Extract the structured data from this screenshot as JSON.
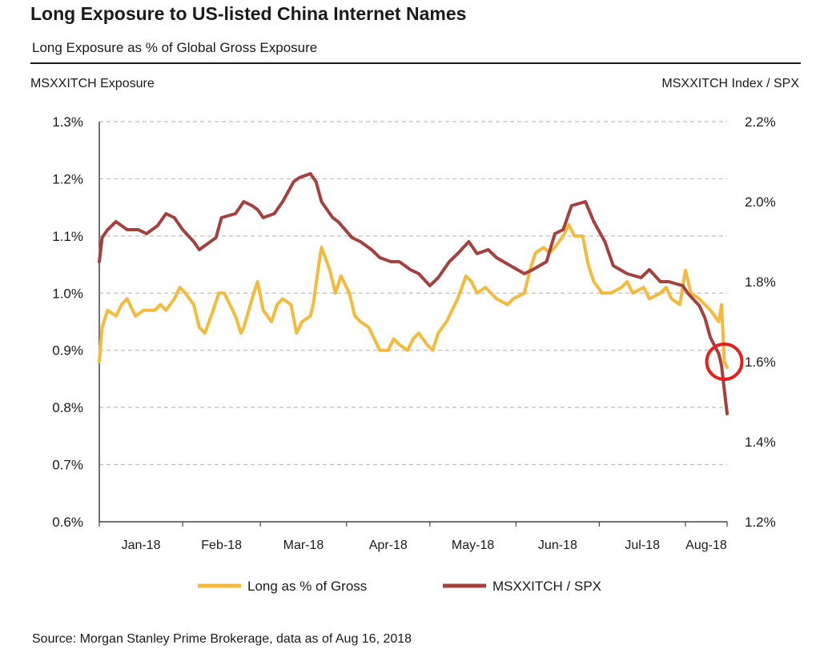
{
  "header": {
    "title": "Long Exposure to US-listed China Internet Names",
    "subtitle": "Long Exposure as % of Global Gross Exposure"
  },
  "footer": {
    "source": "Source: Morgan Stanley Prime Brokerage, data as of Aug 16, 2018"
  },
  "colors": {
    "long_series": "#F5B93B",
    "index_series": "#A6403C",
    "highlight_circle": "#E3201B",
    "gridline": "#BDBDBD",
    "axis": "#444444"
  },
  "chart_data": {
    "type": "line",
    "title": "Long Exposure to US-listed China Internet Names",
    "subtitle": "Long Exposure as % of Global Gross Exposure",
    "ylabel": "MSXXITCH Exposure",
    "y2label": "MSXXITCH Index / SPX",
    "x_tick_labels": [
      "Jan-18",
      "Feb-18",
      "Mar-18",
      "Apr-18",
      "May-18",
      "Jun-18",
      "Jul-18",
      "Aug-18"
    ],
    "x_range": [
      "2018-01-02",
      "2018-08-16"
    ],
    "ylim": [
      0.6,
      1.3
    ],
    "y_ticks": [
      "0.6%",
      "0.7%",
      "0.8%",
      "0.9%",
      "1.0%",
      "1.1%",
      "1.2%",
      "1.3%"
    ],
    "y2lim": [
      1.2,
      2.2
    ],
    "y2_ticks": [
      "1.2%",
      "1.4%",
      "1.6%",
      "1.8%",
      "2.0%",
      "2.2%"
    ],
    "grid": true,
    "legend_position": "bottom",
    "annotation": {
      "type": "circle",
      "at_date": "2018-08-15",
      "axis": "left",
      "value": 0.88
    },
    "series": [
      {
        "name": "Long as % of Gross",
        "axis": "left",
        "color": "#F5B93B",
        "points": [
          [
            "2018-01-02",
            0.88
          ],
          [
            "2018-01-03",
            0.94
          ],
          [
            "2018-01-05",
            0.97
          ],
          [
            "2018-01-08",
            0.96
          ],
          [
            "2018-01-10",
            0.98
          ],
          [
            "2018-01-12",
            0.99
          ],
          [
            "2018-01-15",
            0.96
          ],
          [
            "2018-01-18",
            0.97
          ],
          [
            "2018-01-22",
            0.97
          ],
          [
            "2018-01-24",
            0.98
          ],
          [
            "2018-01-26",
            0.97
          ],
          [
            "2018-01-29",
            0.99
          ],
          [
            "2018-01-31",
            1.01
          ],
          [
            "2018-02-02",
            1.0
          ],
          [
            "2018-02-05",
            0.98
          ],
          [
            "2018-02-07",
            0.94
          ],
          [
            "2018-02-09",
            0.93
          ],
          [
            "2018-02-12",
            0.97
          ],
          [
            "2018-02-14",
            1.0
          ],
          [
            "2018-02-16",
            1.0
          ],
          [
            "2018-02-20",
            0.96
          ],
          [
            "2018-02-22",
            0.93
          ],
          [
            "2018-02-23",
            0.94
          ],
          [
            "2018-02-26",
            0.99
          ],
          [
            "2018-02-28",
            1.02
          ],
          [
            "2018-03-02",
            0.97
          ],
          [
            "2018-03-05",
            0.95
          ],
          [
            "2018-03-07",
            0.98
          ],
          [
            "2018-03-09",
            0.99
          ],
          [
            "2018-03-12",
            0.98
          ],
          [
            "2018-03-14",
            0.93
          ],
          [
            "2018-03-16",
            0.95
          ],
          [
            "2018-03-19",
            0.96
          ],
          [
            "2018-03-20",
            0.98
          ],
          [
            "2018-03-22",
            1.05
          ],
          [
            "2018-03-23",
            1.08
          ],
          [
            "2018-03-26",
            1.04
          ],
          [
            "2018-03-28",
            1.0
          ],
          [
            "2018-03-30",
            1.03
          ],
          [
            "2018-04-02",
            1.0
          ],
          [
            "2018-04-04",
            0.96
          ],
          [
            "2018-04-06",
            0.95
          ],
          [
            "2018-04-09",
            0.94
          ],
          [
            "2018-04-11",
            0.92
          ],
          [
            "2018-04-13",
            0.9
          ],
          [
            "2018-04-16",
            0.9
          ],
          [
            "2018-04-18",
            0.92
          ],
          [
            "2018-04-20",
            0.91
          ],
          [
            "2018-04-23",
            0.9
          ],
          [
            "2018-04-25",
            0.92
          ],
          [
            "2018-04-27",
            0.93
          ],
          [
            "2018-04-30",
            0.91
          ],
          [
            "2018-05-02",
            0.9
          ],
          [
            "2018-05-04",
            0.93
          ],
          [
            "2018-05-07",
            0.95
          ],
          [
            "2018-05-09",
            0.97
          ],
          [
            "2018-05-11",
            0.99
          ],
          [
            "2018-05-14",
            1.03
          ],
          [
            "2018-05-16",
            1.02
          ],
          [
            "2018-05-18",
            1.0
          ],
          [
            "2018-05-21",
            1.01
          ],
          [
            "2018-05-23",
            1.0
          ],
          [
            "2018-05-25",
            0.99
          ],
          [
            "2018-05-29",
            0.98
          ],
          [
            "2018-05-31",
            0.99
          ],
          [
            "2018-06-04",
            1.0
          ],
          [
            "2018-06-06",
            1.04
          ],
          [
            "2018-06-08",
            1.07
          ],
          [
            "2018-06-11",
            1.08
          ],
          [
            "2018-06-13",
            1.07
          ],
          [
            "2018-06-15",
            1.08
          ],
          [
            "2018-06-18",
            1.1
          ],
          [
            "2018-06-20",
            1.12
          ],
          [
            "2018-06-22",
            1.1
          ],
          [
            "2018-06-25",
            1.1
          ],
          [
            "2018-06-27",
            1.05
          ],
          [
            "2018-06-29",
            1.02
          ],
          [
            "2018-07-02",
            1.0
          ],
          [
            "2018-07-05",
            1.0
          ],
          [
            "2018-07-09",
            1.01
          ],
          [
            "2018-07-11",
            1.02
          ],
          [
            "2018-07-13",
            1.0
          ],
          [
            "2018-07-17",
            1.01
          ],
          [
            "2018-07-19",
            0.99
          ],
          [
            "2018-07-23",
            1.0
          ],
          [
            "2018-07-25",
            1.01
          ],
          [
            "2018-07-27",
            0.99
          ],
          [
            "2018-07-30",
            0.98
          ],
          [
            "2018-08-01",
            1.04
          ],
          [
            "2018-08-03",
            1.0
          ],
          [
            "2018-08-06",
            0.99
          ],
          [
            "2018-08-08",
            0.98
          ],
          [
            "2018-08-10",
            0.97
          ],
          [
            "2018-08-13",
            0.95
          ],
          [
            "2018-08-14",
            0.98
          ],
          [
            "2018-08-15",
            0.88
          ],
          [
            "2018-08-16",
            0.87
          ]
        ]
      },
      {
        "name": "MSXXITCH / SPX",
        "axis": "right",
        "color": "#A6403C",
        "points": [
          [
            "2018-01-02",
            1.85
          ],
          [
            "2018-01-03",
            1.91
          ],
          [
            "2018-01-05",
            1.93
          ],
          [
            "2018-01-08",
            1.95
          ],
          [
            "2018-01-10",
            1.94
          ],
          [
            "2018-01-12",
            1.93
          ],
          [
            "2018-01-16",
            1.93
          ],
          [
            "2018-01-19",
            1.92
          ],
          [
            "2018-01-23",
            1.94
          ],
          [
            "2018-01-26",
            1.97
          ],
          [
            "2018-01-29",
            1.96
          ],
          [
            "2018-02-01",
            1.93
          ],
          [
            "2018-02-05",
            1.9
          ],
          [
            "2018-02-07",
            1.88
          ],
          [
            "2018-02-09",
            1.89
          ],
          [
            "2018-02-13",
            1.91
          ],
          [
            "2018-02-15",
            1.96
          ],
          [
            "2018-02-20",
            1.97
          ],
          [
            "2018-02-23",
            2.0
          ],
          [
            "2018-02-26",
            1.99
          ],
          [
            "2018-02-28",
            1.98
          ],
          [
            "2018-03-02",
            1.96
          ],
          [
            "2018-03-06",
            1.97
          ],
          [
            "2018-03-09",
            2.0
          ],
          [
            "2018-03-13",
            2.05
          ],
          [
            "2018-03-15",
            2.06
          ],
          [
            "2018-03-19",
            2.07
          ],
          [
            "2018-03-21",
            2.05
          ],
          [
            "2018-03-23",
            2.0
          ],
          [
            "2018-03-27",
            1.96
          ],
          [
            "2018-03-29",
            1.95
          ],
          [
            "2018-04-03",
            1.91
          ],
          [
            "2018-04-06",
            1.9
          ],
          [
            "2018-04-10",
            1.88
          ],
          [
            "2018-04-13",
            1.86
          ],
          [
            "2018-04-17",
            1.85
          ],
          [
            "2018-04-20",
            1.85
          ],
          [
            "2018-04-24",
            1.83
          ],
          [
            "2018-04-27",
            1.82
          ],
          [
            "2018-05-01",
            1.79
          ],
          [
            "2018-05-04",
            1.81
          ],
          [
            "2018-05-08",
            1.85
          ],
          [
            "2018-05-11",
            1.87
          ],
          [
            "2018-05-15",
            1.9
          ],
          [
            "2018-05-18",
            1.87
          ],
          [
            "2018-05-22",
            1.88
          ],
          [
            "2018-05-25",
            1.86
          ],
          [
            "2018-05-30",
            1.84
          ],
          [
            "2018-06-04",
            1.82
          ],
          [
            "2018-06-07",
            1.83
          ],
          [
            "2018-06-12",
            1.85
          ],
          [
            "2018-06-15",
            1.92
          ],
          [
            "2018-06-18",
            1.93
          ],
          [
            "2018-06-21",
            1.99
          ],
          [
            "2018-06-26",
            2.0
          ],
          [
            "2018-06-29",
            1.95
          ],
          [
            "2018-07-03",
            1.9
          ],
          [
            "2018-07-06",
            1.84
          ],
          [
            "2018-07-11",
            1.82
          ],
          [
            "2018-07-16",
            1.81
          ],
          [
            "2018-07-19",
            1.83
          ],
          [
            "2018-07-23",
            1.8
          ],
          [
            "2018-07-26",
            1.8
          ],
          [
            "2018-07-31",
            1.79
          ],
          [
            "2018-08-02",
            1.77
          ],
          [
            "2018-08-06",
            1.74
          ],
          [
            "2018-08-08",
            1.71
          ],
          [
            "2018-08-10",
            1.66
          ],
          [
            "2018-08-13",
            1.62
          ],
          [
            "2018-08-14",
            1.59
          ],
          [
            "2018-08-15",
            1.53
          ],
          [
            "2018-08-16",
            1.47
          ]
        ]
      }
    ]
  }
}
